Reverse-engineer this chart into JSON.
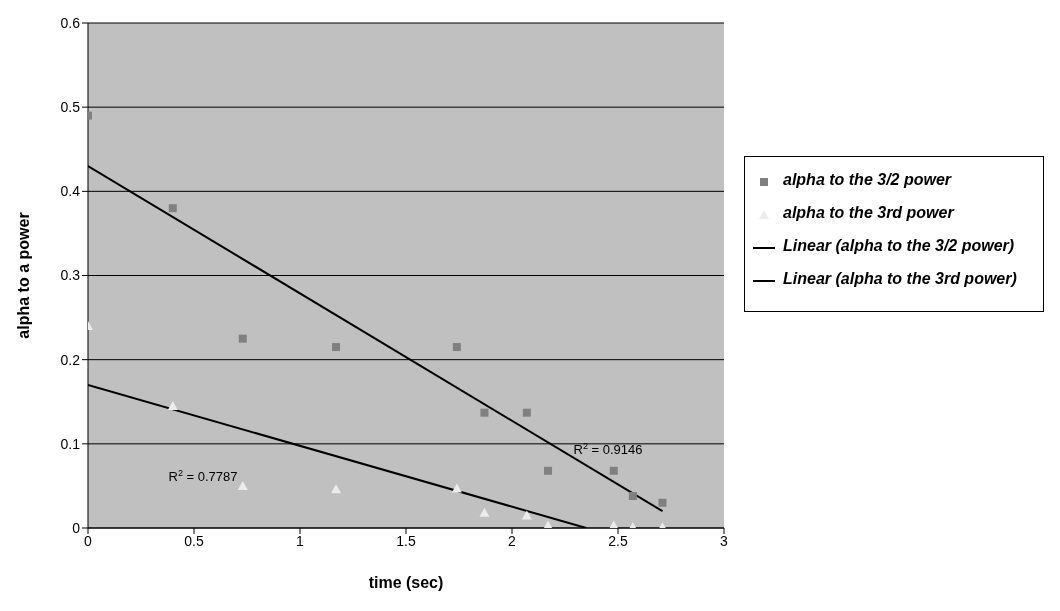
{
  "chart_data": {
    "type": "scatter",
    "xlabel": "time (sec)",
    "ylabel": "alpha to a power",
    "xlim": [
      0,
      3
    ],
    "xticks": [
      0,
      0.5,
      1,
      1.5,
      2,
      2.5,
      3
    ],
    "ylim": [
      0,
      0.6
    ],
    "yticks": [
      0,
      0.1,
      0.2,
      0.3,
      0.4,
      0.5,
      0.6
    ],
    "grid": "y",
    "legend": "right",
    "x": [
      0,
      0.4,
      0.73,
      1.17,
      1.74,
      1.87,
      2.07,
      2.17,
      2.48,
      2.57,
      2.71
    ],
    "series": [
      {
        "name": "alpha to the 3/2 power",
        "color": "#808080",
        "marker": "square",
        "values": [
          0.49,
          0.38,
          0.225,
          0.215,
          0.215,
          0.137,
          0.137,
          0.068,
          0.068,
          0.038,
          0.03
        ]
      },
      {
        "name": "alpha to the 3rd power",
        "color": "#ececec",
        "marker": "triangle",
        "values": [
          0.24,
          0.145,
          0.05,
          0.046,
          0.047,
          0.018,
          0.015,
          0.003,
          0.003,
          0.001,
          0.001
        ]
      },
      {
        "name": "Linear (alpha to the 3/2 power)",
        "type": "line",
        "color": "#000000",
        "marker": "none",
        "x": [
          0,
          2.71
        ],
        "values": [
          0.43,
          0.02
        ]
      },
      {
        "name": "Linear (alpha to the 3rd power)",
        "type": "line",
        "color": "#000000",
        "marker": "none",
        "x": [
          0,
          2.35
        ],
        "values": [
          0.17,
          0
        ]
      }
    ],
    "annotations": [
      "R$^{2}$ = 0.9146",
      "R$^{2}$ = 0.7787"
    ]
  }
}
